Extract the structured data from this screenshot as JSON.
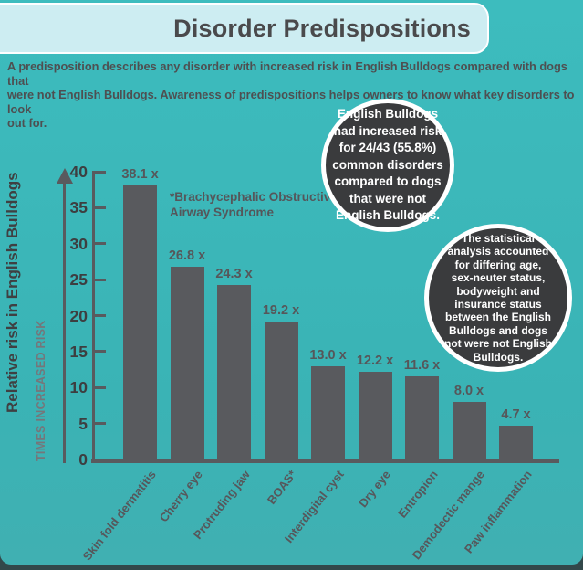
{
  "header": {
    "title": "Disorder Predispositions"
  },
  "intro": {
    "text": "A predisposition describes any disorder with increased risk in English Bulldogs compared with dogs that\nwere not English Bulldogs. Awareness of predispositions helps owners to know what key disorders to look\nout for."
  },
  "callouts": {
    "risk_circle": "English Bulldogs\nhad increased risk\nfor 24/43 (55.8%)\ncommon disorders\ncompared to dogs\nthat were not\nEnglish Bulldogs.",
    "stats_circle": "The statistical\nanalysis  accounted\nfor differing age,\nsex-neuter status,\nbodyweight and\ninsurance status\nbetween the English\nBulldogs and dogs\nnot were not English\nBulldogs."
  },
  "chart_data": {
    "type": "bar",
    "title": "Disorder Predispositions",
    "categories": [
      "Skin fold dermatitis",
      "Cherry eye",
      "Protruding jaw",
      "BOAS*",
      "Interdigital cyst",
      "Dry eye",
      "Entropion",
      "Demodectic mange",
      "Paw inflammation"
    ],
    "values": [
      38.1,
      26.8,
      24.3,
      19.2,
      13.0,
      12.2,
      11.6,
      8.0,
      4.7
    ],
    "value_suffix": " x",
    "xlabel": "",
    "ylabel": "Relative risk in English Bulldogs",
    "ylabel_secondary": "TIMES INCREASED RISK",
    "yticks": [
      0,
      5,
      10,
      15,
      20,
      25,
      30,
      35,
      40
    ],
    "ylim": [
      0,
      40
    ],
    "grid": false,
    "legend": "none",
    "annotation": "*Brachycephalic Obstructive\n Airway Syndrome",
    "bar_color": "#595a5e"
  },
  "colors": {
    "background_teal": "#3ab4b6",
    "footer_dark": "#32484a",
    "banner_fill": "#cdedf2",
    "banner_border": "#fdfeff",
    "title_text": "#4a4a4c",
    "body_text": "#4e4f51",
    "bar_gray": "#595a5e",
    "circle_fill": "#3a3b3d",
    "circle_text": "#ffffff"
  }
}
